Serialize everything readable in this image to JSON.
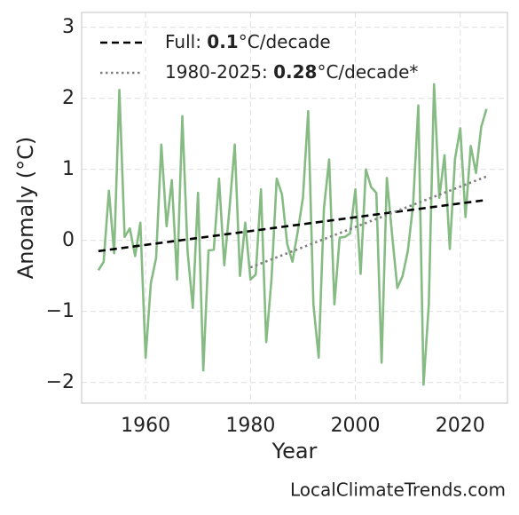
{
  "chart_data": {
    "type": "line",
    "xlabel": "Year",
    "ylabel": "Anomaly (°C)",
    "watermark": "LocalClimateTrends.com",
    "xlim": [
      1947.8,
      2029
    ],
    "xticks": [
      1960,
      1980,
      2000,
      2020
    ],
    "ylim": [
      -2.29,
      3.21
    ],
    "yticks": [
      {
        "value": -2,
        "label": "−2"
      },
      {
        "value": -1,
        "label": "−1"
      },
      0,
      1,
      2,
      3
    ],
    "grid": true,
    "legend": "upper left",
    "series": [
      {
        "name": "Anomaly",
        "color": "#86bb84",
        "style": "solid",
        "x": [
          1951,
          1952,
          1953,
          1954,
          1955,
          1956,
          1957,
          1958,
          1959,
          1960,
          1961,
          1962,
          1963,
          1964,
          1965,
          1966,
          1967,
          1968,
          1969,
          1970,
          1971,
          1972,
          1973,
          1974,
          1975,
          1976,
          1977,
          1978,
          1979,
          1980,
          1981,
          1982,
          1983,
          1984,
          1985,
          1986,
          1987,
          1988,
          1989,
          1990,
          1991,
          1992,
          1993,
          1994,
          1995,
          1996,
          1997,
          1998,
          1999,
          2000,
          2001,
          2002,
          2003,
          2004,
          2005,
          2006,
          2007,
          2008,
          2009,
          2010,
          2011,
          2012,
          2013,
          2014,
          2015,
          2016,
          2017,
          2018,
          2019,
          2020,
          2021,
          2022,
          2023,
          2024,
          2025
        ],
        "values": [
          -0.42,
          -0.3,
          0.7,
          -0.18,
          2.12,
          0.05,
          0.17,
          -0.22,
          0.25,
          -1.65,
          -0.6,
          -0.25,
          1.35,
          0.2,
          0.85,
          -0.55,
          1.75,
          -0.15,
          -0.95,
          0.67,
          -1.83,
          -0.14,
          -0.13,
          0.87,
          -0.35,
          0.45,
          1.35,
          -0.5,
          0.25,
          -0.55,
          -0.48,
          0.72,
          -1.43,
          -0.55,
          0.87,
          0.65,
          -0.05,
          -0.3,
          0.12,
          0.6,
          1.82,
          -0.9,
          -1.65,
          0.45,
          1.14,
          -0.9,
          0.04,
          0.05,
          0.1,
          0.72,
          -0.47,
          1.0,
          0.75,
          0.67,
          -1.72,
          0.88,
          0.08,
          -0.67,
          -0.5,
          -0.15,
          0.5,
          1.9,
          -2.03,
          -0.9,
          2.2,
          0.6,
          1.2,
          -0.12,
          1.15,
          1.58,
          0.33,
          1.33,
          0.95,
          1.6,
          1.85
        ]
      },
      {
        "name_parts": [
          "Full: ",
          "0.1",
          "°C/decade"
        ],
        "color": "#000000",
        "style": "dashed",
        "x": [
          1951,
          2025
        ],
        "values": [
          -0.15,
          0.57
        ]
      },
      {
        "name_parts": [
          "1980-2025: ",
          "0.28",
          "°C/decade*"
        ],
        "color": "#808080",
        "style": "dotted",
        "x": [
          1980,
          2025
        ],
        "values": [
          -0.38,
          0.9
        ]
      }
    ]
  }
}
